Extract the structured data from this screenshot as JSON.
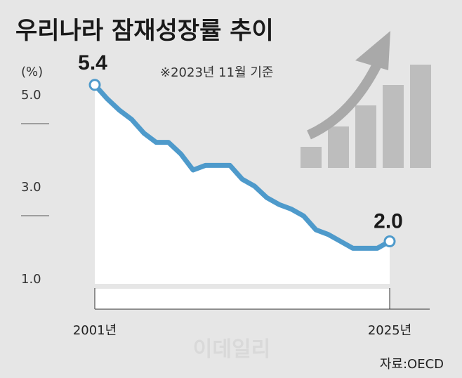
{
  "chart_data": {
    "type": "line",
    "title": "우리나라 잠재성장률 추이",
    "note": "※2023년 11월 기준",
    "yunit": "(%)",
    "ylim": [
      1.0,
      5.4
    ],
    "yticks": [
      {
        "value": 5.0,
        "label": "5.0"
      },
      {
        "value": 3.0,
        "label": "3.0"
      },
      {
        "value": 1.0,
        "label": "1.0"
      }
    ],
    "x": [
      2001,
      2002,
      2003,
      2004,
      2005,
      2006,
      2007,
      2008,
      2009,
      2010,
      2011,
      2012,
      2013,
      2014,
      2015,
      2016,
      2017,
      2018,
      2019,
      2020,
      2021,
      2022,
      2023,
      2024,
      2025
    ],
    "values": [
      5.4,
      5.1,
      4.85,
      4.65,
      4.35,
      4.15,
      4.15,
      3.9,
      3.55,
      3.65,
      3.65,
      3.65,
      3.35,
      3.2,
      2.95,
      2.8,
      2.7,
      2.55,
      2.25,
      2.15,
      2.0,
      1.85,
      1.85,
      1.85,
      2.0
    ],
    "xtick_labels": [
      {
        "x": 2001,
        "label": "2001년"
      },
      {
        "x": 2025,
        "label": "2025년"
      }
    ],
    "point_labels": [
      {
        "index": 0,
        "label": "5.4"
      },
      {
        "index": 24,
        "label": "2.0"
      }
    ],
    "source": "자료:OECD",
    "watermark": "이데일리",
    "colors": {
      "background": "#e6e6e6",
      "line": "#4e9acb",
      "area": "#ffffff",
      "axis": "#333333",
      "decor_bars": "#bdbdbd",
      "decor_arrow": "#a9a9a9"
    }
  }
}
